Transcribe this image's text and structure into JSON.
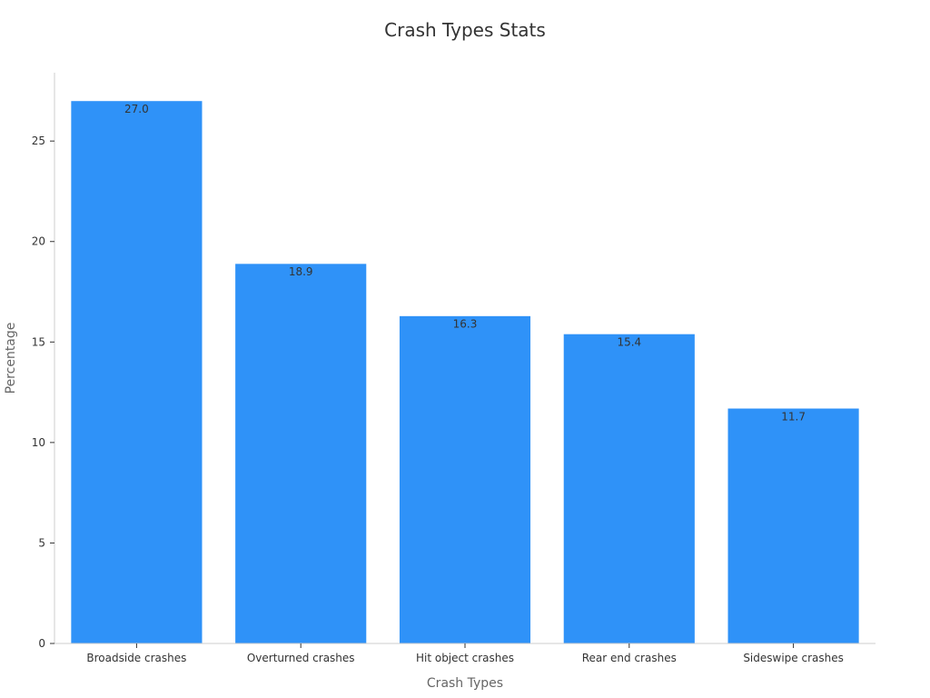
{
  "chart_data": {
    "type": "bar",
    "title": "Crash Types Stats",
    "xlabel": "Crash Types",
    "ylabel": "Percentage",
    "categories": [
      "Broadside crashes",
      "Overturned crashes",
      "Hit object crashes",
      "Rear end crashes",
      "Sideswipe crashes"
    ],
    "values": [
      27.0,
      18.9,
      16.3,
      15.4,
      11.7
    ],
    "data_labels": [
      "27.0",
      "18.9",
      "16.3",
      "15.4",
      "11.7"
    ],
    "yticks": [
      0,
      5,
      10,
      15,
      20,
      25
    ],
    "ytick_labels": [
      "0",
      "5",
      "10",
      "15",
      "20",
      "25"
    ],
    "ylim": [
      0,
      28.4
    ],
    "grid": false,
    "legend": "none",
    "colors": {
      "bar": "#2f92f8",
      "axis": "#cccccc",
      "text": "#333333"
    }
  }
}
